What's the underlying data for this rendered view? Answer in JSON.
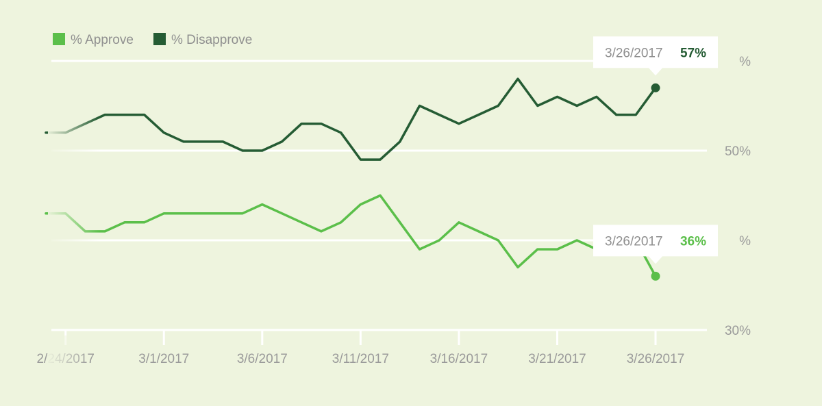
{
  "colors": {
    "background": "#eef4de",
    "approve": "#5bbf4a",
    "disapprove": "#255c34",
    "gridline": "#ffffff",
    "axis_text": "#9a9a9a"
  },
  "chart_data": {
    "type": "line",
    "title": "",
    "xlabel": "",
    "ylabel": "",
    "ylim": [
      30,
      60
    ],
    "y_ticks": [
      {
        "value": 60,
        "label": "%"
      },
      {
        "value": 50,
        "label": "50%"
      },
      {
        "value": 40,
        "label": "%"
      },
      {
        "value": 30,
        "label": "30%"
      }
    ],
    "x_ticks": [
      {
        "index": 1,
        "label": "2/24/2017"
      },
      {
        "index": 6,
        "label": "3/1/2017"
      },
      {
        "index": 11,
        "label": "3/6/2017"
      },
      {
        "index": 16,
        "label": "3/11/2017"
      },
      {
        "index": 21,
        "label": "3/16/2017"
      },
      {
        "index": 26,
        "label": "3/21/2017"
      },
      {
        "index": 31,
        "label": "3/26/2017"
      }
    ],
    "x": [
      "2/23/2017",
      "2/24/2017",
      "2/25/2017",
      "2/26/2017",
      "2/27/2017",
      "2/28/2017",
      "3/1/2017",
      "3/2/2017",
      "3/3/2017",
      "3/4/2017",
      "3/5/2017",
      "3/6/2017",
      "3/7/2017",
      "3/8/2017",
      "3/9/2017",
      "3/10/2017",
      "3/11/2017",
      "3/12/2017",
      "3/13/2017",
      "3/14/2017",
      "3/15/2017",
      "3/16/2017",
      "3/17/2017",
      "3/18/2017",
      "3/19/2017",
      "3/20/2017",
      "3/21/2017",
      "3/22/2017",
      "3/23/2017",
      "3/24/2017",
      "3/25/2017",
      "3/26/2017"
    ],
    "series": [
      {
        "name": "% Disapprove",
        "key": "disapprove",
        "values": [
          52,
          52,
          53,
          54,
          54,
          54,
          52,
          51,
          51,
          51,
          50,
          50,
          51,
          53,
          53,
          52,
          49,
          49,
          51,
          55,
          54,
          53,
          54,
          55,
          58,
          55,
          56,
          55,
          56,
          54,
          54,
          57
        ]
      },
      {
        "name": "% Approve",
        "key": "approve",
        "values": [
          43,
          43,
          41,
          41,
          42,
          42,
          43,
          43,
          43,
          43,
          43,
          44,
          43,
          42,
          41,
          42,
          44,
          45,
          42,
          39,
          40,
          42,
          41,
          40,
          37,
          39,
          39,
          40,
          39,
          41,
          40,
          36
        ]
      }
    ],
    "legend": {
      "position": "top-left",
      "items": [
        "% Approve",
        "% Disapprove"
      ]
    },
    "tooltips": [
      {
        "series": "disapprove",
        "date": "3/26/2017",
        "value": "57%"
      },
      {
        "series": "approve",
        "date": "3/26/2017",
        "value": "36%"
      }
    ]
  }
}
